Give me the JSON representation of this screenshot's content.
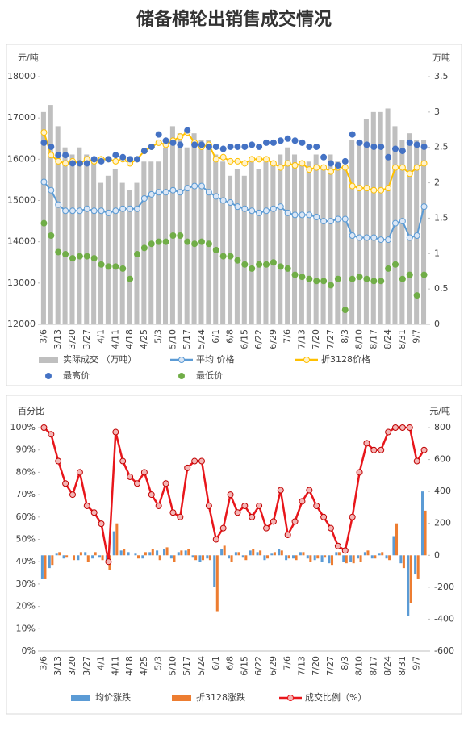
{
  "title": "储备棉轮出销售成交情况",
  "chart_data": [
    {
      "type": "combo",
      "y_label": "元/吨",
      "y2_label": "万吨",
      "categories": [
        "3/6",
        null,
        "3/13",
        null,
        "3/20",
        null,
        "3/27",
        null,
        "4/1",
        null,
        "4/11",
        null,
        "4/18",
        null,
        "4/25",
        null,
        "5/3",
        null,
        "5/10",
        null,
        "5/17",
        null,
        "5/24",
        null,
        "6/1",
        null,
        "6/8",
        null,
        "6/15",
        null,
        "6/22",
        null,
        "6/29",
        null,
        "7/6",
        null,
        "7/13",
        null,
        "7/20",
        null,
        "7/27",
        null,
        "8/3",
        null,
        "8/10",
        null,
        "8/17",
        null,
        "8/24",
        null,
        "8/31",
        null,
        "9/7",
        null
      ],
      "ylim": [
        12000,
        18000
      ],
      "yticks": [
        12000,
        13000,
        14000,
        15000,
        16000,
        17000,
        18000
      ],
      "y2lim": [
        0,
        3.5
      ],
      "y2ticks": [
        0,
        0.5,
        1,
        1.5,
        2,
        2.5,
        3,
        3.5
      ],
      "series": [
        {
          "name": "实际成交 （万吨）",
          "type": "bar",
          "axis": "y2",
          "color": "#bfbfbf",
          "values": [
            3,
            3.1,
            2.8,
            2.5,
            2.4,
            2.5,
            2.4,
            2.3,
            2.0,
            2.1,
            2.2,
            2.0,
            1.9,
            2.0,
            2.3,
            2.3,
            2.3,
            2.5,
            2.8,
            2.7,
            2.5,
            2.7,
            2.6,
            2.6,
            2.4,
            2.3,
            2.1,
            2.2,
            2.1,
            2.3,
            2.2,
            2.3,
            2.3,
            2.4,
            2.5,
            2.4,
            2.3,
            2.3,
            2.4,
            2.2,
            2.4,
            2.3,
            2.2,
            2.6,
            2.6,
            2.9,
            3.0,
            3.0,
            3.05,
            2.8,
            2.6,
            2.7,
            2.6,
            2.6
          ]
        },
        {
          "name": "平均 价格",
          "type": "line",
          "color": "#5b9bd5",
          "marker": "#dbe6f4",
          "values": [
            15450,
            15250,
            14900,
            14750,
            14750,
            14750,
            14800,
            14750,
            14750,
            14700,
            14750,
            14800,
            14800,
            14800,
            15050,
            15150,
            15200,
            15200,
            15250,
            15200,
            15300,
            15350,
            15350,
            15200,
            15100,
            15000,
            14950,
            14850,
            14800,
            14750,
            14700,
            14750,
            14800,
            14850,
            14700,
            14650,
            14650,
            14650,
            14600,
            14500,
            14500,
            14550,
            14550,
            14150,
            14100,
            14100,
            14100,
            14050,
            14050,
            14450,
            14500,
            14100,
            14150,
            14850
          ]
        },
        {
          "name": "折3128价格",
          "type": "line",
          "color": "#ffc000",
          "marker": "#fff2cc",
          "values": [
            16650,
            16100,
            15950,
            15900,
            15950,
            15900,
            16000,
            15950,
            16000,
            16000,
            15950,
            16000,
            15900,
            16000,
            16200,
            16300,
            16400,
            16350,
            16450,
            16550,
            16650,
            16400,
            16300,
            16350,
            16000,
            16050,
            15950,
            15950,
            15900,
            16000,
            16000,
            16000,
            15900,
            15800,
            15900,
            15850,
            15900,
            15750,
            15800,
            15800,
            15700,
            15800,
            15800,
            15350,
            15300,
            15300,
            15250,
            15250,
            15300,
            15800,
            15800,
            15650,
            15800,
            15900
          ]
        },
        {
          "name": "最高价",
          "type": "scatter",
          "color": "#4472c4",
          "values": [
            16400,
            16300,
            16100,
            16100,
            15900,
            15900,
            15900,
            16000,
            15950,
            16000,
            16100,
            16050,
            16000,
            16000,
            16200,
            16300,
            16600,
            16450,
            16400,
            16350,
            16700,
            16350,
            16350,
            16300,
            16300,
            16250,
            16300,
            16300,
            16300,
            16350,
            16300,
            16400,
            16400,
            16450,
            16500,
            16450,
            16400,
            16300,
            16300,
            16050,
            15900,
            15850,
            15950,
            16600,
            16400,
            16350,
            16300,
            16300,
            16050,
            16250,
            16200,
            16400,
            16350,
            16300
          ]
        },
        {
          "name": "最低价",
          "type": "scatter",
          "color": "#70ad47",
          "values": [
            14450,
            14150,
            13750,
            13700,
            13600,
            13650,
            13650,
            13600,
            13450,
            13400,
            13400,
            13350,
            13100,
            13700,
            13850,
            13950,
            14000,
            14000,
            14150,
            14150,
            14000,
            13950,
            14000,
            13950,
            13800,
            13650,
            13650,
            13550,
            13450,
            13350,
            13450,
            13450,
            13500,
            13400,
            13350,
            13200,
            13150,
            13100,
            13050,
            13050,
            12950,
            13100,
            12350,
            13100,
            13150,
            13100,
            13050,
            13050,
            13350,
            13450,
            13100,
            13200,
            12700,
            13200
          ]
        }
      ]
    },
    {
      "type": "combo",
      "y_label": "百分比",
      "y2_label": "元/吨",
      "categories": [
        "3/6",
        null,
        "3/13",
        null,
        "3/20",
        null,
        "3/27",
        null,
        "4/1",
        null,
        "4/11",
        null,
        "4/18",
        null,
        "4/25",
        null,
        "5/3",
        null,
        "5/10",
        null,
        "5/17",
        null,
        "5/24",
        null,
        "6/1",
        null,
        "6/8",
        null,
        "6/15",
        null,
        "6/22",
        null,
        "6/29",
        null,
        "7/6",
        null,
        "7/13",
        null,
        "7/20",
        null,
        "7/27",
        null,
        "8/3",
        null,
        "8/10",
        null,
        "8/17",
        null,
        "8/24",
        null,
        "8/31",
        null,
        "9/7",
        null
      ],
      "ylim": [
        0,
        100
      ],
      "yticks": [
        {
          "value": 0,
          "label": "0%"
        },
        {
          "value": 10,
          "label": "10%"
        },
        {
          "value": 20,
          "label": "20%"
        },
        {
          "value": 30,
          "label": "30%"
        },
        {
          "value": 40,
          "label": "40%"
        },
        {
          "value": 50,
          "label": "50%"
        },
        {
          "value": 60,
          "label": "60%"
        },
        {
          "value": 70,
          "label": "70%"
        },
        {
          "value": 80,
          "label": "80%"
        },
        {
          "value": 90,
          "label": "90%"
        },
        {
          "value": 100,
          "label": "100%"
        }
      ],
      "y2lim": [
        -600,
        800
      ],
      "y2ticks": [
        -600,
        -400,
        -200,
        0,
        200,
        400,
        600,
        800
      ],
      "series": [
        {
          "name": "均价涨跌",
          "type": "bar",
          "axis": "y2",
          "color": "#5b9bd5",
          "values": [
            -150,
            -80,
            10,
            -20,
            0,
            -30,
            20,
            -20,
            -10,
            -40,
            150,
            30,
            20,
            10,
            -20,
            20,
            30,
            40,
            -20,
            20,
            30,
            -10,
            -40,
            -20,
            -200,
            40,
            -20,
            20,
            -10,
            30,
            20,
            -30,
            10,
            40,
            -30,
            -20,
            20,
            -20,
            -30,
            -40,
            -50,
            20,
            -40,
            -40,
            -20,
            20,
            -20,
            10,
            -20,
            120,
            -50,
            -380,
            -120,
            400
          ]
        },
        {
          "name": "折3128涨跌",
          "type": "bar",
          "axis": "y2",
          "color": "#ed7d31",
          "values": [
            -150,
            -60,
            20,
            -10,
            -30,
            20,
            -40,
            20,
            -30,
            -90,
            200,
            40,
            0,
            -20,
            20,
            40,
            -30,
            50,
            -40,
            30,
            40,
            -30,
            -30,
            -30,
            -350,
            60,
            -40,
            20,
            -30,
            40,
            30,
            -20,
            20,
            30,
            -20,
            -30,
            20,
            -40,
            -20,
            -10,
            -60,
            20,
            -50,
            -50,
            -40,
            30,
            -20,
            20,
            -30,
            200,
            -80,
            -300,
            -150,
            280
          ]
        },
        {
          "name": "成交比例（%）",
          "type": "line",
          "color": "#e8161b",
          "marker": "#f4b6b6",
          "values": [
            100,
            97,
            85,
            75,
            70,
            80,
            65,
            62,
            57,
            40,
            98,
            85,
            78,
            75,
            80,
            70,
            65,
            75,
            62,
            60,
            82,
            85,
            85,
            65,
            50,
            55,
            70,
            62,
            65,
            60,
            65,
            55,
            58,
            72,
            52,
            58,
            67,
            72,
            65,
            60,
            55,
            47,
            45,
            60,
            80,
            93,
            90,
            90,
            98,
            100,
            100,
            100,
            85,
            90
          ]
        }
      ]
    }
  ]
}
